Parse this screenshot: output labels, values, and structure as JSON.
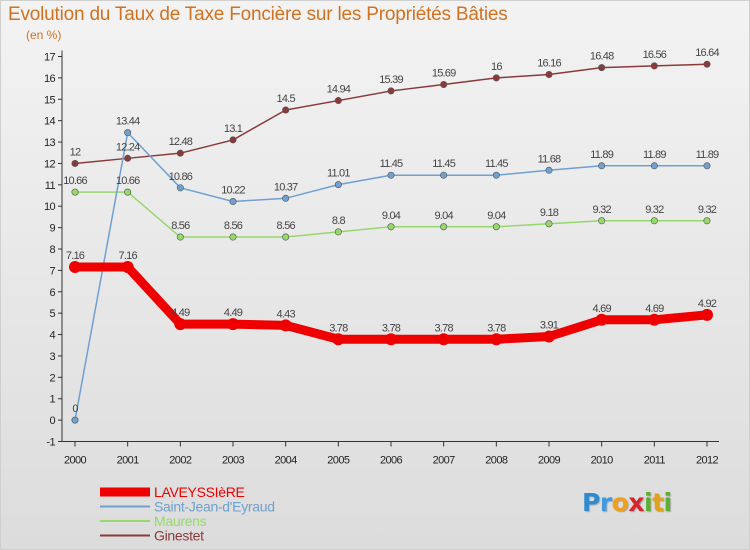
{
  "title": "Evolution du Taux de Taxe Foncière sur les Propriétés Bâties",
  "subtitle": "(en %)",
  "logo": {
    "letters": [
      "P",
      "r",
      "o",
      "x",
      "i",
      "t",
      "i"
    ],
    "colors": [
      "#2e8bd1",
      "#3d9be0",
      "#f0a020",
      "#d8242a",
      "#5ab030",
      "#e0a020",
      "#5ab030"
    ]
  },
  "chart_data": {
    "type": "line",
    "title": "Evolution du Taux de Taxe Foncière sur les Propriétés Bâties",
    "ylabel": "(en %)",
    "xlabel": "",
    "x": [
      "2000",
      "2001",
      "2002",
      "2003",
      "2004",
      "2005",
      "2006",
      "2007",
      "2008",
      "2009",
      "2010",
      "2011",
      "2012"
    ],
    "ylim": [
      -1,
      17
    ],
    "yticks": [
      -1,
      0,
      1,
      2,
      3,
      4,
      5,
      6,
      7,
      8,
      9,
      10,
      11,
      12,
      13,
      14,
      15,
      16,
      17
    ],
    "grid": false,
    "legend": "bottom-left",
    "series": [
      {
        "name": "LAVEYSSIèRE",
        "color": "#ee0000",
        "width": 9,
        "values": [
          7.16,
          7.16,
          4.49,
          4.49,
          4.43,
          3.78,
          3.78,
          3.78,
          3.78,
          3.91,
          4.69,
          4.69,
          4.92
        ],
        "labels": [
          "7.16",
          "7.16",
          "4.49",
          "4.49",
          "4.43",
          "3.78",
          "3.78",
          "3.78",
          "3.78",
          "3.91",
          "4.69",
          "4.69",
          "4.92"
        ]
      },
      {
        "name": "Saint-Jean-d'Eyraud",
        "color": "#6fa0d0",
        "width": 1.5,
        "values": [
          0,
          13.44,
          10.86,
          10.22,
          10.37,
          11.01,
          11.45,
          11.45,
          11.45,
          11.68,
          11.89,
          11.89,
          11.89
        ],
        "labels": [
          "0",
          "13.44",
          "10.86",
          "10.22",
          "10.37",
          "11.01",
          "11.45",
          "11.45",
          "11.45",
          "11.68",
          "11.89",
          "11.89",
          "11.89"
        ]
      },
      {
        "name": "Maurens",
        "color": "#96d86c",
        "width": 1.5,
        "values": [
          10.66,
          10.66,
          8.56,
          8.56,
          8.56,
          8.8,
          9.04,
          9.04,
          9.04,
          9.18,
          9.32,
          9.32,
          9.32
        ],
        "labels": [
          "10.66",
          "10.66",
          "8.56",
          "8.56",
          "8.56",
          "8.8",
          "9.04",
          "9.04",
          "9.04",
          "9.18",
          "9.32",
          "9.32",
          "9.32"
        ]
      },
      {
        "name": "Ginestet",
        "color": "#8b3a3a",
        "width": 1.5,
        "values": [
          12,
          12.24,
          12.48,
          13.1,
          14.5,
          14.94,
          15.39,
          15.69,
          16,
          16.16,
          16.48,
          16.56,
          16.64
        ],
        "labels": [
          "12",
          "12.24",
          "12.48",
          "13.1",
          "14.5",
          "14.94",
          "15.39",
          "15.69",
          "16",
          "16.16",
          "16.48",
          "16.56",
          "16.64"
        ]
      }
    ]
  }
}
